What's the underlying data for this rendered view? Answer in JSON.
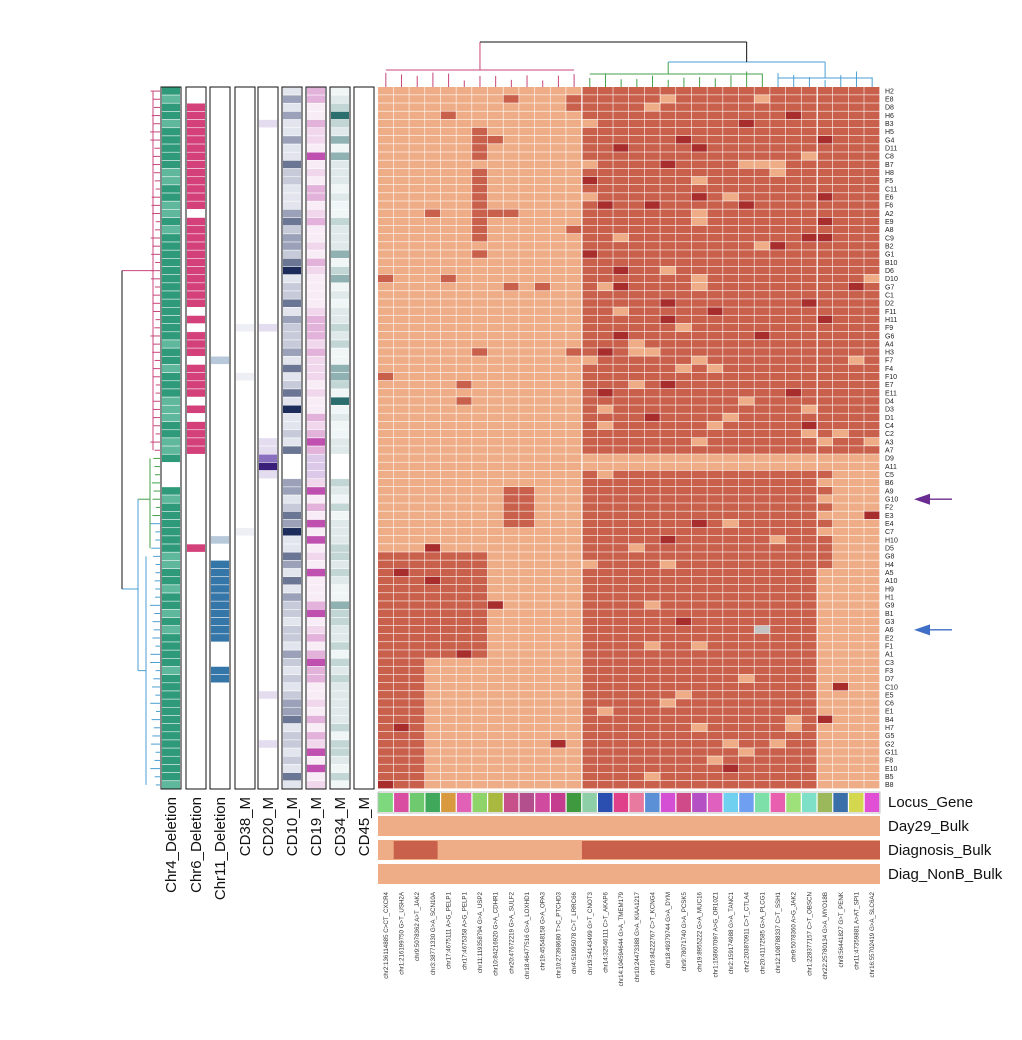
{
  "chart_data": {
    "type": "heatmap",
    "rows": [
      "H2",
      "E8",
      "D8",
      "H6",
      "B3",
      "H5",
      "G4",
      "D11",
      "C8",
      "B7",
      "H8",
      "F5",
      "C11",
      "E6",
      "F6",
      "A2",
      "E9",
      "A8",
      "C9",
      "B2",
      "G1",
      "B10",
      "D6",
      "D10",
      "G7",
      "C1",
      "D2",
      "F11",
      "H11",
      "F9",
      "G6",
      "A4",
      "H3",
      "F7",
      "F4",
      "F10",
      "E7",
      "E11",
      "D4",
      "D3",
      "D1",
      "C4",
      "C2",
      "A3",
      "A7",
      "D9",
      "A11",
      "C5",
      "B6",
      "A9",
      "G10",
      "F2",
      "E3",
      "E4",
      "C7",
      "H10",
      "D5",
      "G8",
      "H4",
      "A5",
      "A10",
      "H9",
      "H1",
      "G9",
      "B1",
      "G3",
      "A6",
      "E2",
      "F1",
      "A1",
      "C3",
      "F3",
      "D7",
      "C10",
      "E5",
      "C6",
      "E1",
      "B4",
      "H7",
      "G5",
      "G2",
      "G11",
      "F8",
      "E10",
      "B5",
      "B8"
    ],
    "columns": [
      "chr2:136114885 C>CT_CXCR4",
      "chr1:216199750 G>T_USH2A",
      "chr9:5078362 A>T_JAK2",
      "chr3:38771330 G>A_SCN10A",
      "chr17:4675111 A>G_PELP1",
      "chr17:4675358 A>G_PELP1",
      "chr11:119358794 G>A_USP2",
      "chr10:84216920 G>A_CDHR1",
      "chr20:47672219 G>A_SULF2",
      "chr18:46477516 G>A_LOXHD1",
      "chr19:45548158 G>A_OPA3",
      "chr10:27398680 T>C_PTCHD3",
      "chr4:51995078 C>T_LRRC66",
      "chr19:54143499 G>T_CNOT3",
      "chr14:32546111 C>T_AKAP6",
      "chr14:104594644 G>A_TMEM179",
      "chr10:24473388 G>A_KIAA1217",
      "chr16:84222767 C>T_KCNG4",
      "chr18:49379744 G>A_DYM",
      "chr9:78071740 G>A_PCSK5",
      "chr19:8955222 G>A_MUC16",
      "chr1:158607097 A>G_OR10Z1",
      "chr2:159174988 G>A_TANC1",
      "chr2:203870911 C>T_CTLA4",
      "chr20:41172585 G>A_PLCG1",
      "chr12:108788337 C>T_SSH1",
      "chr9:5078360 A>G_JAK2",
      "chr1:228377157 C>T_OBSCN",
      "chr22:25780134 G>A_MYO18B",
      "chr8:56441827 G>T_PENK",
      "chr11:47359881 A>AT_SPI1",
      "chr16:55702419 G>A_SLC6A2"
    ],
    "annotation_bars": [
      "Chr4_Deletion",
      "Chr6_Deletion",
      "Chr11_Deletion",
      "CD38_M",
      "CD20_M",
      "CD10_M",
      "CD19_M",
      "CD34_M",
      "CD45_M"
    ],
    "column_annotations": [
      "Locus_Gene",
      "Day29_Bulk",
      "Diagnosis_Bulk",
      "Diag_NonB_Bulk"
    ],
    "highlighted_rows": [
      {
        "row": "G10",
        "color": "#6a2c91"
      },
      {
        "row": "A6",
        "color": "#3f6fc6"
      }
    ],
    "colors": {
      "low": "#efad87",
      "high": "#c9604c",
      "very_high": "#a82d2d",
      "missing": "#c4c4c4",
      "chr4": "#2f9a7a",
      "chr6": "#d4407a",
      "chr11": "#3576a8",
      "cd_grey": "#6b7594",
      "cd_pink": "#c050b0",
      "cd_teal": "#2b6e6e",
      "cd_navy": "#1b2b5a",
      "cd_purple": "#3a1f7a"
    },
    "cell_grid": {
      "default_high_rows": "H2 to D9 (first block) and B6 to B8 (second block)",
      "cluster_boundary_row": "A11"
    }
  }
}
